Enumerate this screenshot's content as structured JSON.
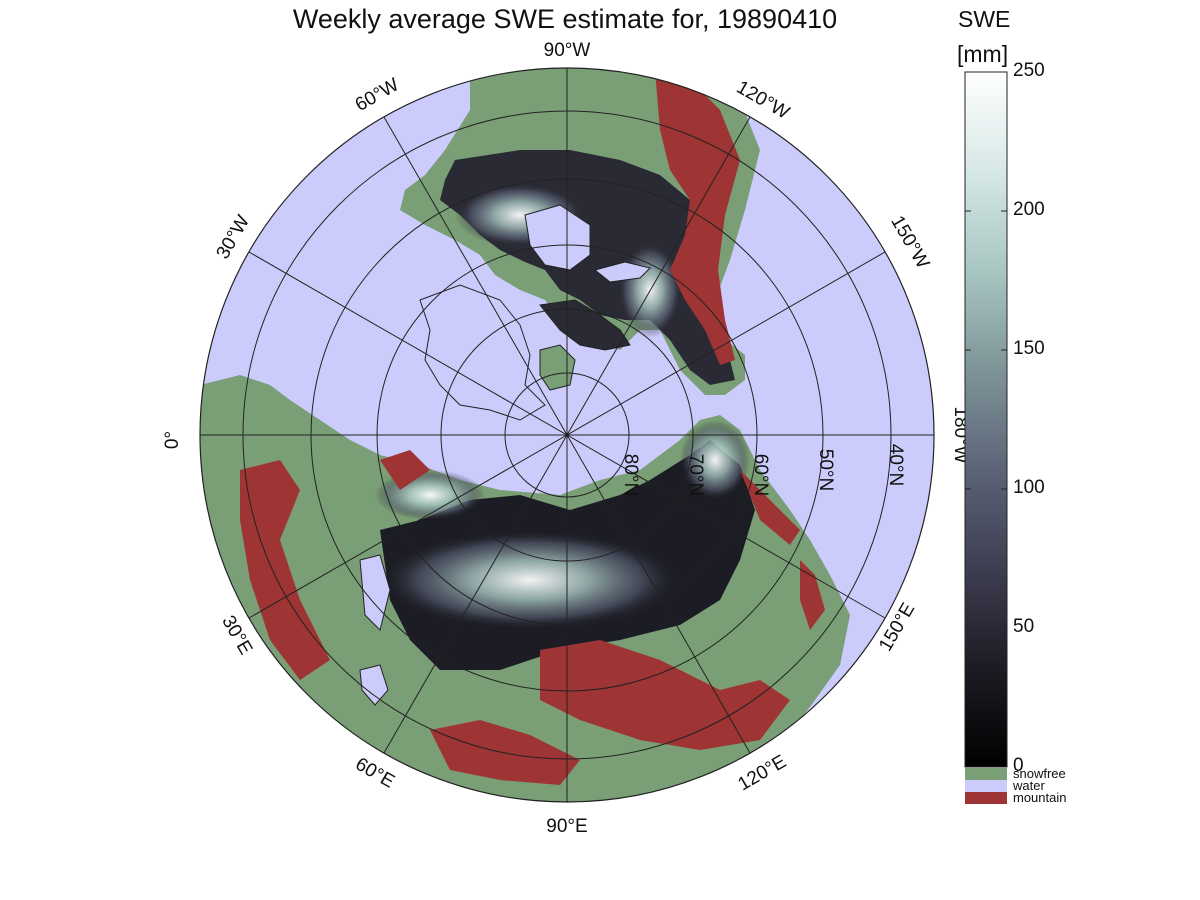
{
  "title": "Weekly average SWE estimate for, 19890410",
  "colorbar": {
    "title": "SWE",
    "unit": "[mm]",
    "ticks": [
      "0",
      "50",
      "100",
      "150",
      "200",
      "250"
    ],
    "range": [
      0,
      250
    ],
    "stops": [
      "#000000",
      "#1c1c24",
      "#3e3e52",
      "#5c6478",
      "#7e9498",
      "#a8c6c2",
      "#d6e8e6",
      "#ffffff"
    ],
    "legend": [
      {
        "label": "snowfree",
        "color": "#7a9e76"
      },
      {
        "label": "water",
        "color": "#ccccfc"
      },
      {
        "label": "mountain",
        "color": "#9e3434"
      }
    ]
  },
  "map": {
    "projection": "north polar stereographic",
    "colors": {
      "water": "#ccccfc",
      "snowfree": "#7a9e76",
      "mountain": "#9e3434",
      "coast": "#222222"
    },
    "longitude_labels": [
      "90°W",
      "120°W",
      "150°W",
      "180°W",
      "150°E",
      "120°E",
      "90°E",
      "60°E",
      "30°E",
      "0°",
      "30°W",
      "60°W"
    ],
    "latitude_labels": [
      "80°N",
      "70°N",
      "60°N",
      "50°N",
      "40°N"
    ]
  }
}
